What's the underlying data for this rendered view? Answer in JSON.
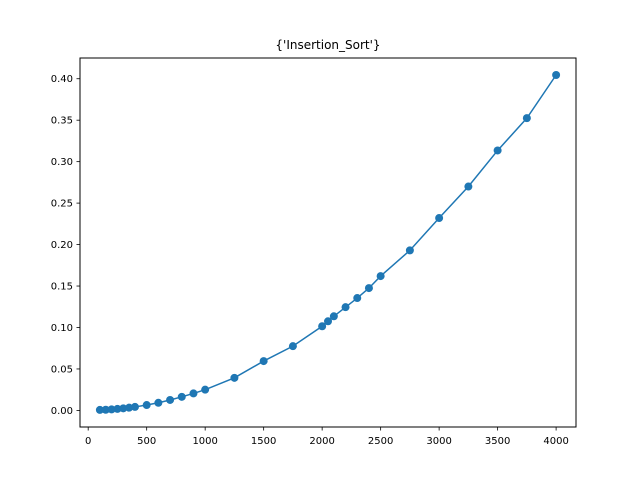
{
  "chart_data": {
    "type": "line",
    "title": "{'Insertion_Sort'}",
    "xlabel": "",
    "ylabel": "",
    "xlim": [
      -70,
      4170
    ],
    "ylim": [
      -0.02,
      0.425
    ],
    "x_ticks": [
      0,
      500,
      1000,
      1500,
      2000,
      2500,
      3000,
      3500,
      4000
    ],
    "x_tick_labels": [
      "0",
      "500",
      "1000",
      "1500",
      "2000",
      "2500",
      "3000",
      "3500",
      "4000"
    ],
    "y_ticks": [
      0.0,
      0.05,
      0.1,
      0.15,
      0.2,
      0.25,
      0.3,
      0.35,
      0.4
    ],
    "y_tick_labels": [
      "0.00",
      "0.05",
      "0.10",
      "0.15",
      "0.20",
      "0.25",
      "0.30",
      "0.35",
      "0.40"
    ],
    "grid": false,
    "color": "#1f77b4",
    "marker": "circle",
    "series": [
      {
        "x": [
          100,
          150,
          200,
          250,
          300,
          350,
          400,
          500,
          600,
          700,
          800,
          900,
          1000,
          1250,
          1500,
          1750,
          2000,
          2050,
          2100,
          2200,
          2300,
          2400,
          2500,
          2750,
          3000,
          3250,
          3500,
          3750,
          4000
        ],
        "y": [
          0.0006,
          0.0008,
          0.0012,
          0.0018,
          0.0025,
          0.0033,
          0.0042,
          0.0065,
          0.0092,
          0.0126,
          0.0164,
          0.0205,
          0.025,
          0.0393,
          0.0595,
          0.0775,
          0.1015,
          0.1075,
          0.1135,
          0.1245,
          0.1355,
          0.1475,
          0.162,
          0.193,
          0.232,
          0.27,
          0.3135,
          0.3525,
          0.4045
        ]
      }
    ]
  }
}
